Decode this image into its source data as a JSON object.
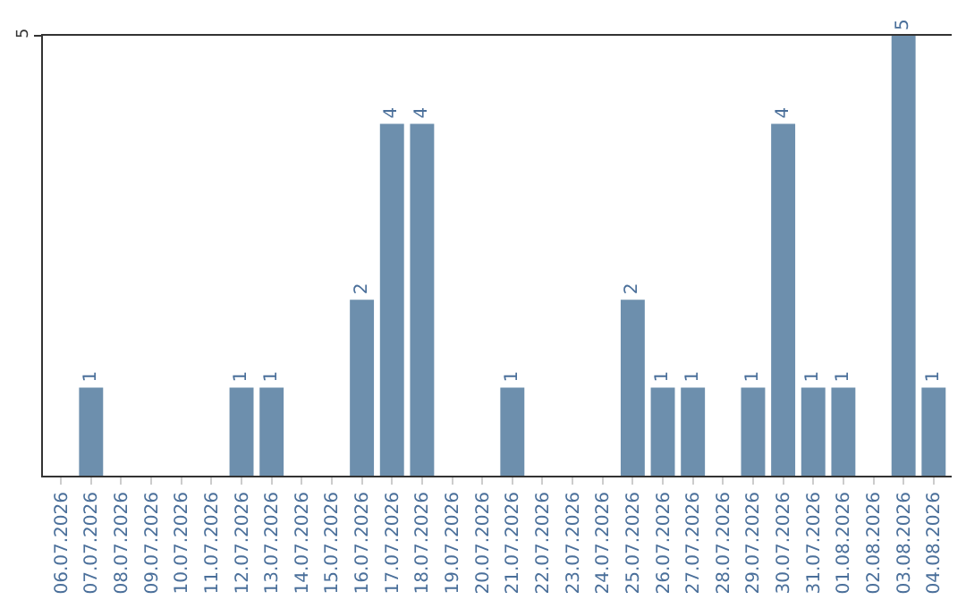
{
  "chart_data": {
    "type": "bar",
    "categories": [
      "06.07.2026",
      "07.07.2026",
      "08.07.2026",
      "09.07.2026",
      "10.07.2026",
      "11.07.2026",
      "12.07.2026",
      "13.07.2026",
      "14.07.2026",
      "15.07.2026",
      "16.07.2026",
      "17.07.2026",
      "18.07.2026",
      "19.07.2026",
      "20.07.2026",
      "21.07.2026",
      "22.07.2026",
      "23.07.2026",
      "24.07.2026",
      "25.07.2026",
      "26.07.2026",
      "27.07.2026",
      "28.07.2026",
      "29.07.2026",
      "30.07.2026",
      "31.07.2026",
      "01.08.2026",
      "02.08.2026",
      "03.08.2026",
      "04.08.2026"
    ],
    "values": [
      0,
      1,
      0,
      0,
      0,
      0,
      1,
      1,
      0,
      0,
      2,
      4,
      4,
      0,
      0,
      1,
      0,
      0,
      0,
      2,
      1,
      1,
      0,
      1,
      4,
      1,
      1,
      0,
      5,
      1
    ],
    "value_labels": [
      null,
      "1",
      null,
      null,
      null,
      null,
      "1",
      "1",
      null,
      null,
      "2",
      "4",
      "4",
      null,
      null,
      "1",
      null,
      null,
      null,
      "2",
      "1",
      "1",
      null,
      "1",
      "4",
      "1",
      "1",
      null,
      "5",
      "1"
    ],
    "color": "#6d8fad",
    "ylim": [
      0,
      5
    ],
    "yticks": [
      5
    ],
    "legend": false
  }
}
